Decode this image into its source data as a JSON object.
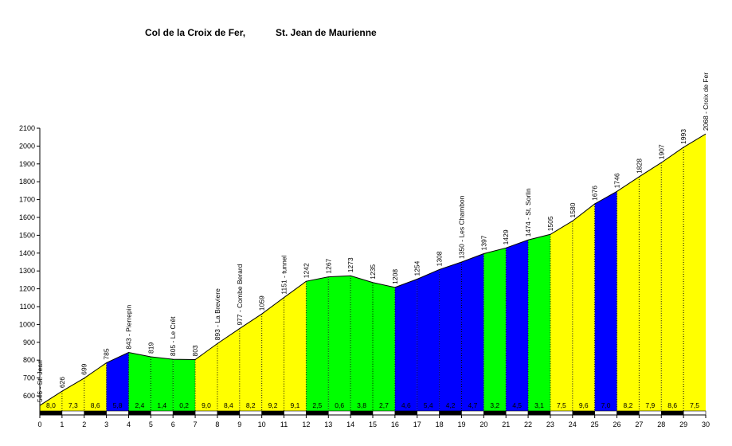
{
  "chart_data": {
    "type": "area",
    "title": "Col de la Croix de Fer,",
    "subtitle": "St. Jean de Maurienne",
    "xlabel": "",
    "ylabel": "",
    "xlim": [
      0,
      30
    ],
    "ylim": [
      500,
      2100
    ],
    "x_ticks": [
      "0",
      "1",
      "2",
      "3",
      "4",
      "5",
      "6",
      "7",
      "8",
      "9",
      "10",
      "11",
      "12",
      "13",
      "14",
      "15",
      "16",
      "17",
      "18",
      "19",
      "20",
      "21",
      "22",
      "23",
      "24",
      "25",
      "26",
      "27",
      "28",
      "29",
      "30"
    ],
    "y_ticks": [
      "600",
      "700",
      "800",
      "900",
      "1000",
      "1100",
      "1200",
      "1300",
      "1400",
      "1500",
      "1600",
      "1700",
      "1800",
      "1900",
      "2000",
      "2100"
    ],
    "grid": false,
    "points": [
      {
        "x": 0,
        "y": 546,
        "label": "546 - St. Jean"
      },
      {
        "x": 1,
        "y": 626,
        "label": "626"
      },
      {
        "x": 2,
        "y": 699,
        "label": "699"
      },
      {
        "x": 3,
        "y": 785,
        "label": "785"
      },
      {
        "x": 4,
        "y": 843,
        "label": "843 - Pierrepin"
      },
      {
        "x": 5,
        "y": 819,
        "label": "819"
      },
      {
        "x": 6,
        "y": 805,
        "label": "805 - Le Crêt"
      },
      {
        "x": 7,
        "y": 803,
        "label": "803"
      },
      {
        "x": 8,
        "y": 893,
        "label": "893 - La Breviere"
      },
      {
        "x": 9,
        "y": 977,
        "label": "977 - Combe Berard"
      },
      {
        "x": 10,
        "y": 1059,
        "label": "1059"
      },
      {
        "x": 11,
        "y": 1151,
        "label": "1151 - tunnel"
      },
      {
        "x": 12,
        "y": 1242,
        "label": "1242"
      },
      {
        "x": 13,
        "y": 1267,
        "label": "1267"
      },
      {
        "x": 14,
        "y": 1273,
        "label": "1273"
      },
      {
        "x": 15,
        "y": 1235,
        "label": "1235"
      },
      {
        "x": 16,
        "y": 1208,
        "label": "1208"
      },
      {
        "x": 17,
        "y": 1254,
        "label": "1254"
      },
      {
        "x": 18,
        "y": 1308,
        "label": "1308"
      },
      {
        "x": 19,
        "y": 1350,
        "label": "1350 - Les Chambon"
      },
      {
        "x": 20,
        "y": 1397,
        "label": "1397"
      },
      {
        "x": 21,
        "y": 1429,
        "label": "1429"
      },
      {
        "x": 22,
        "y": 1474,
        "label": "1474 - St. Sorlin"
      },
      {
        "x": 23,
        "y": 1505,
        "label": "1505"
      },
      {
        "x": 24,
        "y": 1580,
        "label": "1580"
      },
      {
        "x": 25,
        "y": 1676,
        "label": "1676"
      },
      {
        "x": 26,
        "y": 1746,
        "label": "1746"
      },
      {
        "x": 27,
        "y": 1828,
        "label": "1828"
      },
      {
        "x": 28,
        "y": 1907,
        "label": "1907"
      },
      {
        "x": 29,
        "y": 1993,
        "label": "1993"
      },
      {
        "x": 30,
        "y": 2068,
        "label": "2068 - Croix de Fer"
      }
    ],
    "segments": [
      {
        "grade": "8,0",
        "color": "#ffff00"
      },
      {
        "grade": "7,3",
        "color": "#ffff00"
      },
      {
        "grade": "8,6",
        "color": "#ffff00"
      },
      {
        "grade": "5,8",
        "color": "#0000ff"
      },
      {
        "grade": "2,4",
        "color": "#00ff00"
      },
      {
        "grade": "1,4",
        "color": "#00ff00"
      },
      {
        "grade": "0,2",
        "color": "#00ff00"
      },
      {
        "grade": "9,0",
        "color": "#ffff00"
      },
      {
        "grade": "8,4",
        "color": "#ffff00"
      },
      {
        "grade": "8,2",
        "color": "#ffff00"
      },
      {
        "grade": "9,2",
        "color": "#ffff00"
      },
      {
        "grade": "9,1",
        "color": "#ffff00"
      },
      {
        "grade": "2,5",
        "color": "#00ff00"
      },
      {
        "grade": "0,6",
        "color": "#00ff00"
      },
      {
        "grade": "3,8",
        "color": "#00ff00"
      },
      {
        "grade": "2,7",
        "color": "#00ff00"
      },
      {
        "grade": "4,6",
        "color": "#0000ff"
      },
      {
        "grade": "5,4",
        "color": "#0000ff"
      },
      {
        "grade": "4,2",
        "color": "#0000ff"
      },
      {
        "grade": "4,7",
        "color": "#0000ff"
      },
      {
        "grade": "3,2",
        "color": "#00ff00"
      },
      {
        "grade": "4,5",
        "color": "#0000ff"
      },
      {
        "grade": "3,1",
        "color": "#00ff00"
      },
      {
        "grade": "7,5",
        "color": "#ffff00"
      },
      {
        "grade": "9,6",
        "color": "#ffff00"
      },
      {
        "grade": "7,0",
        "color": "#0000ff"
      },
      {
        "grade": "8,2",
        "color": "#ffff00"
      },
      {
        "grade": "7,9",
        "color": "#ffff00"
      },
      {
        "grade": "8,6",
        "color": "#ffff00"
      },
      {
        "grade": "7,5",
        "color": "#ffff00"
      }
    ]
  }
}
